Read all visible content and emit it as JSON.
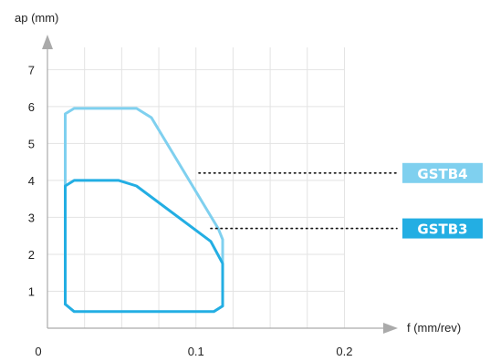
{
  "chart_data": {
    "type": "area",
    "xlabel": "f (mm/rev)",
    "ylabel": "ap (mm)",
    "xlim": [
      0,
      0.22
    ],
    "ylim": [
      0,
      7.6
    ],
    "x_ticks": [
      {
        "value": 0,
        "label": "0"
      },
      {
        "value": 0.1,
        "label": "0.1"
      },
      {
        "value": 0.2,
        "label": "0.2"
      }
    ],
    "y_ticks": [
      {
        "value": 1,
        "label": "1"
      },
      {
        "value": 2,
        "label": "2"
      },
      {
        "value": 3,
        "label": "3"
      },
      {
        "value": 4,
        "label": "4"
      },
      {
        "value": 5,
        "label": "5"
      },
      {
        "value": 6,
        "label": "6"
      },
      {
        "value": 7,
        "label": "7"
      }
    ],
    "grid_x": [
      0.025,
      0.05,
      0.075,
      0.1,
      0.125,
      0.15,
      0.175,
      0.2
    ],
    "grid_y": [
      1,
      2,
      3,
      4,
      5,
      6,
      7
    ],
    "grid": true,
    "series": [
      {
        "name": "GSTB4",
        "color": "#7fd0ef",
        "points": [
          [
            0.012,
            3.8
          ],
          [
            0.012,
            5.8
          ],
          [
            0.018,
            5.95
          ],
          [
            0.06,
            5.95
          ],
          [
            0.07,
            5.7
          ],
          [
            0.115,
            2.7
          ],
          [
            0.118,
            2.4
          ],
          [
            0.118,
            1.8
          ]
        ],
        "label_anchor": [
          0.102,
          4.2
        ]
      },
      {
        "name": "GSTB3",
        "color": "#23aee3",
        "points": [
          [
            0.012,
            0.65
          ],
          [
            0.012,
            3.85
          ],
          [
            0.018,
            4.0
          ],
          [
            0.048,
            4.0
          ],
          [
            0.06,
            3.85
          ],
          [
            0.11,
            2.35
          ],
          [
            0.118,
            1.75
          ],
          [
            0.118,
            0.6
          ],
          [
            0.112,
            0.45
          ],
          [
            0.018,
            0.45
          ],
          [
            0.012,
            0.65
          ]
        ],
        "label_anchor": [
          0.11,
          2.7
        ]
      }
    ]
  }
}
